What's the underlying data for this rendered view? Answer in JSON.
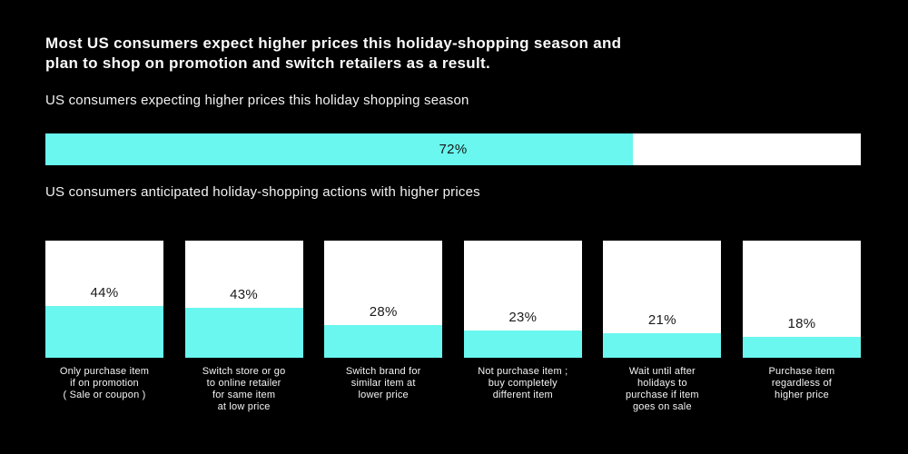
{
  "page": {
    "background_color": "#000000",
    "accent_color": "#69f7ef",
    "bar_track_color": "#ffffff",
    "text_color": "#fafafa",
    "value_label_color": "#1a1a1a"
  },
  "title": {
    "lines": [
      "Most US consumers expect higher prices this holiday-shopping season and",
      "plan to shop on promotion and switch retailers as a result."
    ]
  },
  "chart_data": [
    {
      "type": "bar",
      "orientation": "horizontal",
      "title": "US consumers expecting higher prices this holiday shopping season",
      "categories": [
        "US consumers expecting higher prices"
      ],
      "values": [
        72
      ],
      "value_labels": [
        "72%"
      ],
      "xlim": [
        0,
        100
      ],
      "bar_color": "#69f7ef",
      "track_color": "#ffffff",
      "grid": false,
      "legend": false
    },
    {
      "type": "bar",
      "orientation": "vertical",
      "title": "US consumers anticipated holiday-shopping actions with higher prices",
      "categories": [
        "Only purchase item if on promotion ( Sale or coupon )",
        "Switch store or go to online retailer for same item at low price",
        "Switch brand for similar item at lower price",
        "Not purchase item ; buy completely different item",
        "Wait until after holidays to purchase if item goes on sale",
        "Purchase item regardless of higher price"
      ],
      "category_lines": [
        [
          "Only purchase item",
          "if on promotion",
          "( Sale or coupon )"
        ],
        [
          "Switch store or go",
          "to online retailer",
          "for same item",
          "at low price"
        ],
        [
          "Switch brand for",
          "similar item at",
          "lower price"
        ],
        [
          "Not purchase item ;",
          "buy completely",
          "different item"
        ],
        [
          "Wait until after",
          "holidays to",
          "purchase if item",
          "goes on sale"
        ],
        [
          "Purchase item",
          "regardless of",
          "higher price"
        ]
      ],
      "values": [
        44,
        43,
        28,
        23,
        21,
        18
      ],
      "value_labels": [
        "44%",
        "43%",
        "28%",
        "23%",
        "21%",
        "18%"
      ],
      "ylim": [
        0,
        100
      ],
      "bar_color": "#69f7ef",
      "track_color": "#ffffff",
      "grid": false,
      "legend": false
    }
  ]
}
